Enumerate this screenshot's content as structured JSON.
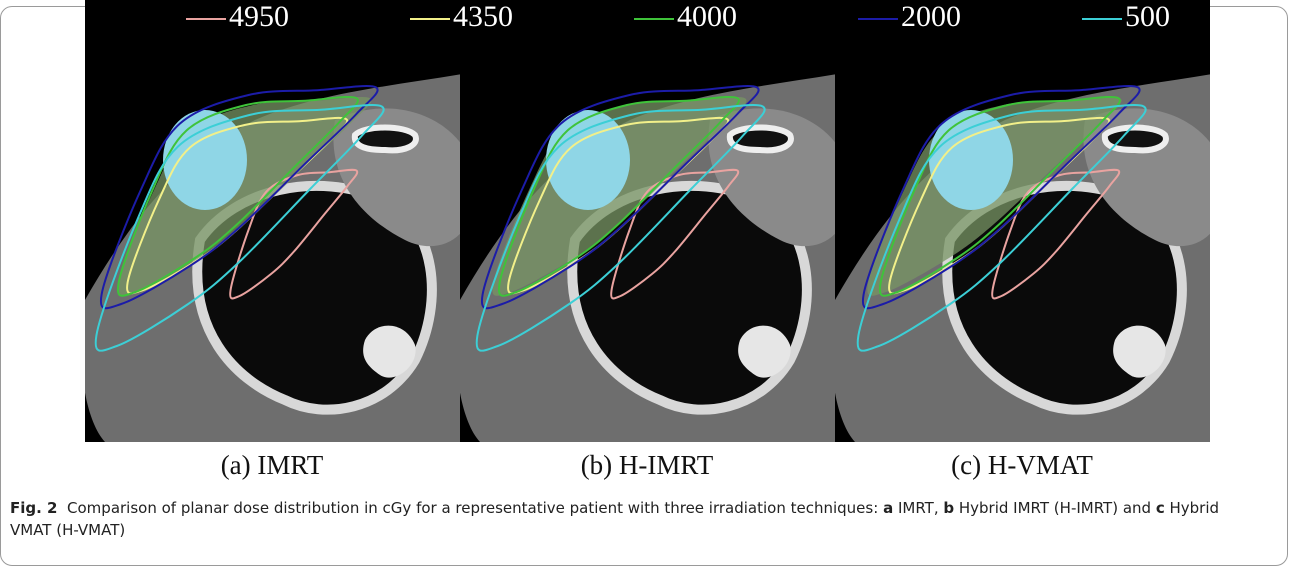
{
  "figure": {
    "legend": [
      {
        "label": "4950",
        "color": "#e9a3a0"
      },
      {
        "label": "4350",
        "color": "#f2f08a"
      },
      {
        "label": "4000",
        "color": "#3fc33a"
      },
      {
        "label": "2000",
        "color": "#1c1ca8"
      },
      {
        "label": "500",
        "color": "#3ccfd6"
      }
    ],
    "panels": [
      {
        "caption": "(a) IMRT"
      },
      {
        "caption": "(b) H-IMRT"
      },
      {
        "caption": "(c) H-VMAT"
      }
    ],
    "caption": {
      "label": "Fig. 2",
      "segments": [
        {
          "text": "Comparison of planar dose distribution in cGy for a representative patient with three irradiation techniques: ",
          "bold": false
        },
        {
          "text": "a",
          "bold": true
        },
        {
          "text": " IMRT, ",
          "bold": false
        },
        {
          "text": "b",
          "bold": true
        },
        {
          "text": " Hybrid IMRT (H-IMRT) and ",
          "bold": false
        },
        {
          "text": "c",
          "bold": true
        },
        {
          "text": " Hybrid VMAT (H-VMAT)",
          "bold": false
        }
      ]
    }
  }
}
